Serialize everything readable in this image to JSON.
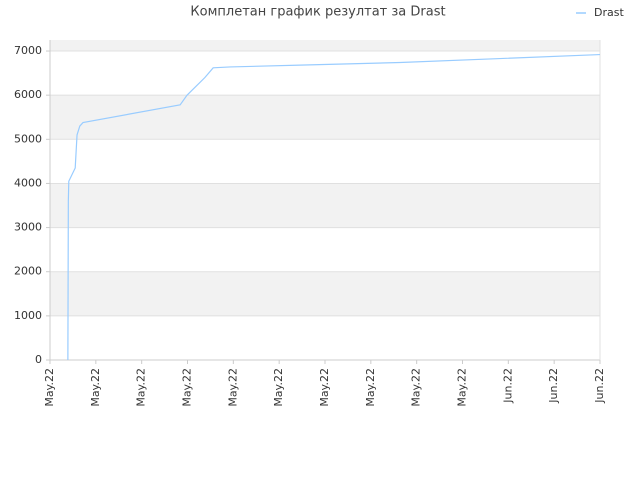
{
  "chart_data": {
    "type": "line",
    "title": "Комплетан график резултат за Drast",
    "x": [
      0.39,
      0.4,
      0.41,
      0.55,
      0.59,
      0.65,
      0.72,
      2.84,
      2.99,
      3.38,
      3.56,
      3.93,
      5.45,
      7.64,
      9.82,
      12
    ],
    "series": [
      {
        "name": "Drast",
        "color": "#99ccff",
        "values": [
          0,
          3600,
          4050,
          4350,
          5100,
          5300,
          5380,
          5780,
          6000,
          6400,
          6620,
          6640,
          6680,
          6740,
          6830,
          6920
        ]
      }
    ],
    "xlim": [
      0,
      12
    ],
    "xticks": [
      {
        "value": 0,
        "label": "May.22"
      },
      {
        "value": 1,
        "label": "May.22"
      },
      {
        "value": 2,
        "label": "May.22"
      },
      {
        "value": 3,
        "label": "May.22"
      },
      {
        "value": 4,
        "label": "May.22"
      },
      {
        "value": 5,
        "label": "May.22"
      },
      {
        "value": 6,
        "label": "May.22"
      },
      {
        "value": 7,
        "label": "May.22"
      },
      {
        "value": 8,
        "label": "May.22"
      },
      {
        "value": 9,
        "label": "May.22"
      },
      {
        "value": 10,
        "label": "Jun.22"
      },
      {
        "value": 11,
        "label": "Jun.22"
      },
      {
        "value": 12,
        "label": "Jun.22"
      }
    ],
    "ylim": [
      0,
      7250
    ],
    "yticks": [
      0,
      1000,
      2000,
      3000,
      4000,
      5000,
      6000,
      7000
    ],
    "grid": true,
    "legend": "upper right"
  }
}
